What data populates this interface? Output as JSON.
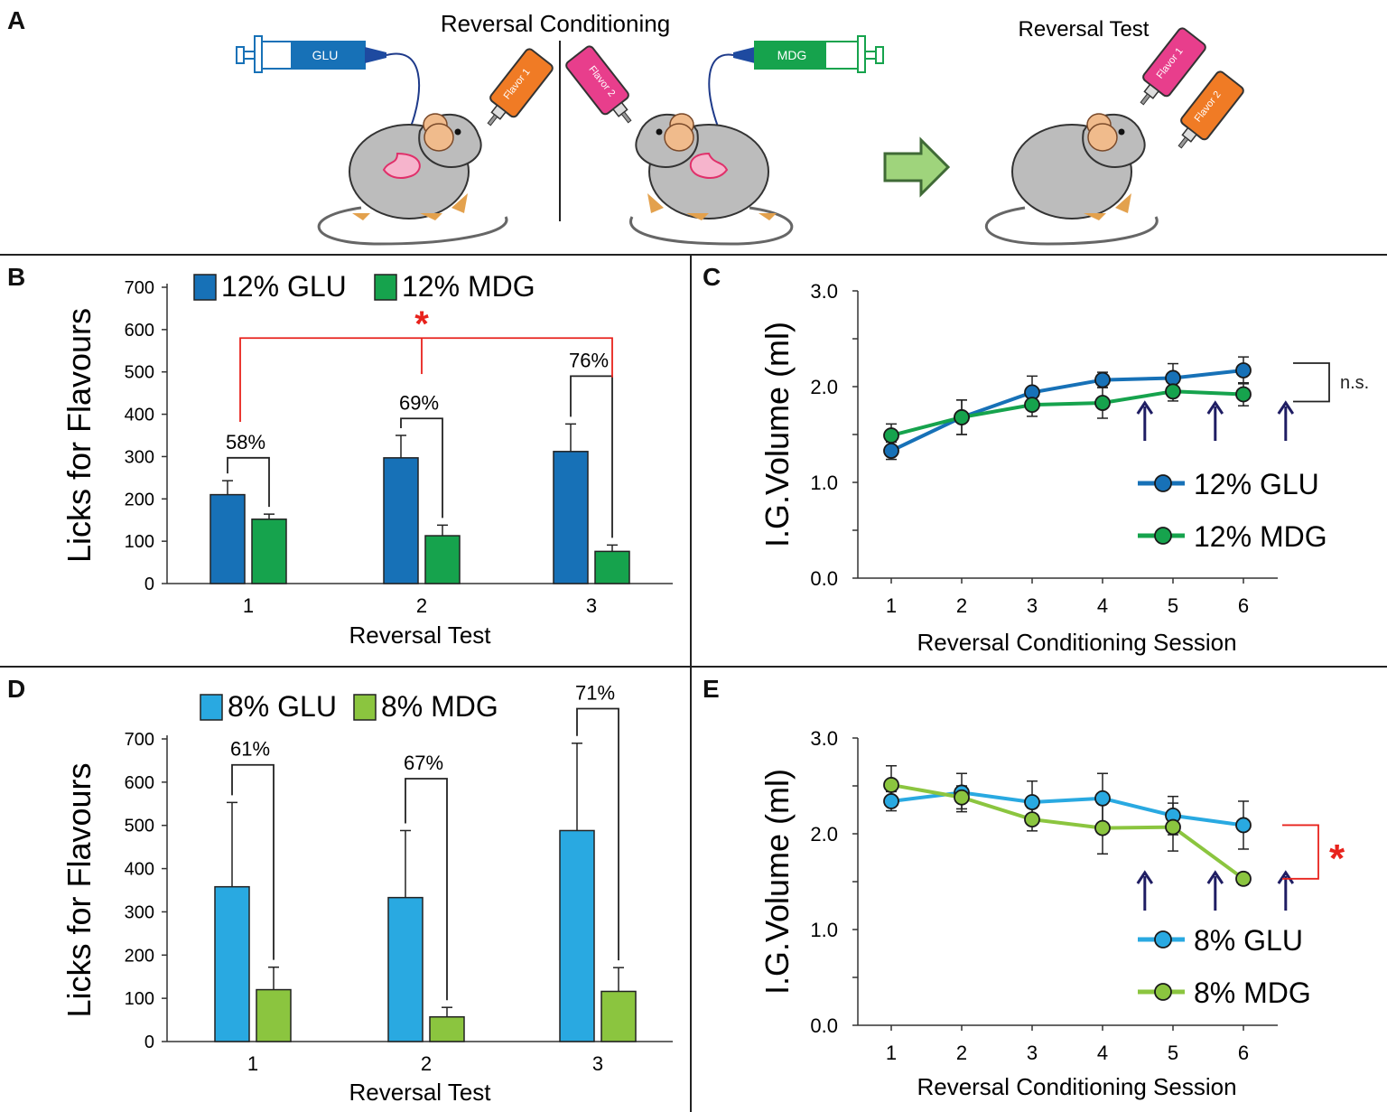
{
  "colors": {
    "glu12": "#1771b7",
    "mdg12": "#16a34d",
    "glu8": "#29a9e1",
    "mdg8": "#8bc53f",
    "sig": "#e8221c",
    "arrow": "#1f1d63",
    "pink": "#e83e8c",
    "orange": "#f07b25"
  },
  "panelA": {
    "label": "A",
    "title_conditioning": "Reversal Conditioning",
    "title_test": "Reversal Test",
    "syringe_left": "GLU",
    "syringe_right": "MDG",
    "flavor1": "Flavor 1",
    "flavor2": "Flavor 2"
  },
  "chart_data": [
    {
      "panel": "B",
      "type": "bar",
      "categories": [
        "1",
        "2",
        "3"
      ],
      "xlabel": "Reversal Test",
      "ylabel": "Licks for Flavours",
      "ylim": [
        0,
        700
      ],
      "yticks": [
        "0",
        "100",
        "200",
        "300",
        "400",
        "500",
        "600",
        "700"
      ],
      "series": [
        {
          "name": "12% GLU",
          "values": [
            210,
            297,
            312
          ],
          "errors": [
            33,
            53,
            65
          ],
          "color": "#1771b7"
        },
        {
          "name": "12% MDG",
          "values": [
            152,
            113,
            76
          ],
          "errors": [
            12,
            25,
            15
          ],
          "color": "#16a34d"
        }
      ],
      "annotations": [
        "58%",
        "69%",
        "76%"
      ],
      "significance": "*"
    },
    {
      "panel": "C",
      "type": "line",
      "x": [
        "1",
        "2",
        "3",
        "4",
        "5",
        "6"
      ],
      "xlabel": "Reversal Conditioning Session",
      "ylabel": "I.G.Volume (ml)",
      "ylim": [
        0,
        3
      ],
      "yticks": [
        "0.0",
        "1.0",
        "2.0",
        "3.0"
      ],
      "series": [
        {
          "name": "12% GLU",
          "values": [
            1.33,
            1.68,
            1.94,
            2.07,
            2.09,
            2.17
          ],
          "errors": [
            0.09,
            0.18,
            0.17,
            0.08,
            0.15,
            0.14
          ],
          "color": "#1771b7"
        },
        {
          "name": "12% MDG",
          "values": [
            1.49,
            1.68,
            1.81,
            1.83,
            1.95,
            1.92
          ],
          "errors": [
            0.12,
            0.18,
            0.12,
            0.16,
            0.1,
            0.12
          ],
          "color": "#16a34d"
        }
      ],
      "arrows_after_session": [
        4,
        5,
        6
      ],
      "comparison_label": "n.s."
    },
    {
      "panel": "D",
      "type": "bar",
      "categories": [
        "1",
        "2",
        "3"
      ],
      "xlabel": "Reversal Test",
      "ylabel": "Licks for Flavours",
      "ylim": [
        0,
        700
      ],
      "yticks": [
        "0",
        "100",
        "200",
        "300",
        "400",
        "500",
        "600",
        "700"
      ],
      "series": [
        {
          "name": "8% GLU",
          "values": [
            358,
            333,
            488
          ],
          "errors": [
            195,
            155,
            202
          ],
          "color": "#29a9e1"
        },
        {
          "name": "8% MDG",
          "values": [
            120,
            57,
            116
          ],
          "errors": [
            52,
            22,
            55
          ],
          "color": "#8bc53f"
        }
      ],
      "annotations": [
        "61%",
        "67%",
        "71%"
      ]
    },
    {
      "panel": "E",
      "type": "line",
      "x": [
        "1",
        "2",
        "3",
        "4",
        "5",
        "6"
      ],
      "xlabel": "Reversal Conditioning Session",
      "ylabel": "I.G.Volume (ml)",
      "ylim": [
        0,
        3
      ],
      "yticks": [
        "0.0",
        "1.0",
        "2.0",
        "3.0"
      ],
      "series": [
        {
          "name": "8% GLU",
          "values": [
            2.34,
            2.43,
            2.33,
            2.37,
            2.19,
            2.09
          ],
          "errors": [
            0.1,
            0.2,
            0.22,
            0.26,
            0.2,
            0.25
          ],
          "color": "#29a9e1"
        },
        {
          "name": "8% MDG",
          "values": [
            2.51,
            2.38,
            2.15,
            2.06,
            2.07,
            1.53
          ],
          "errors": [
            0.2,
            0.12,
            0.12,
            0.27,
            0.25,
            0.06
          ],
          "color": "#8bc53f"
        }
      ],
      "arrows_after_session": [
        4,
        5,
        6
      ],
      "comparison_label": "*"
    }
  ]
}
